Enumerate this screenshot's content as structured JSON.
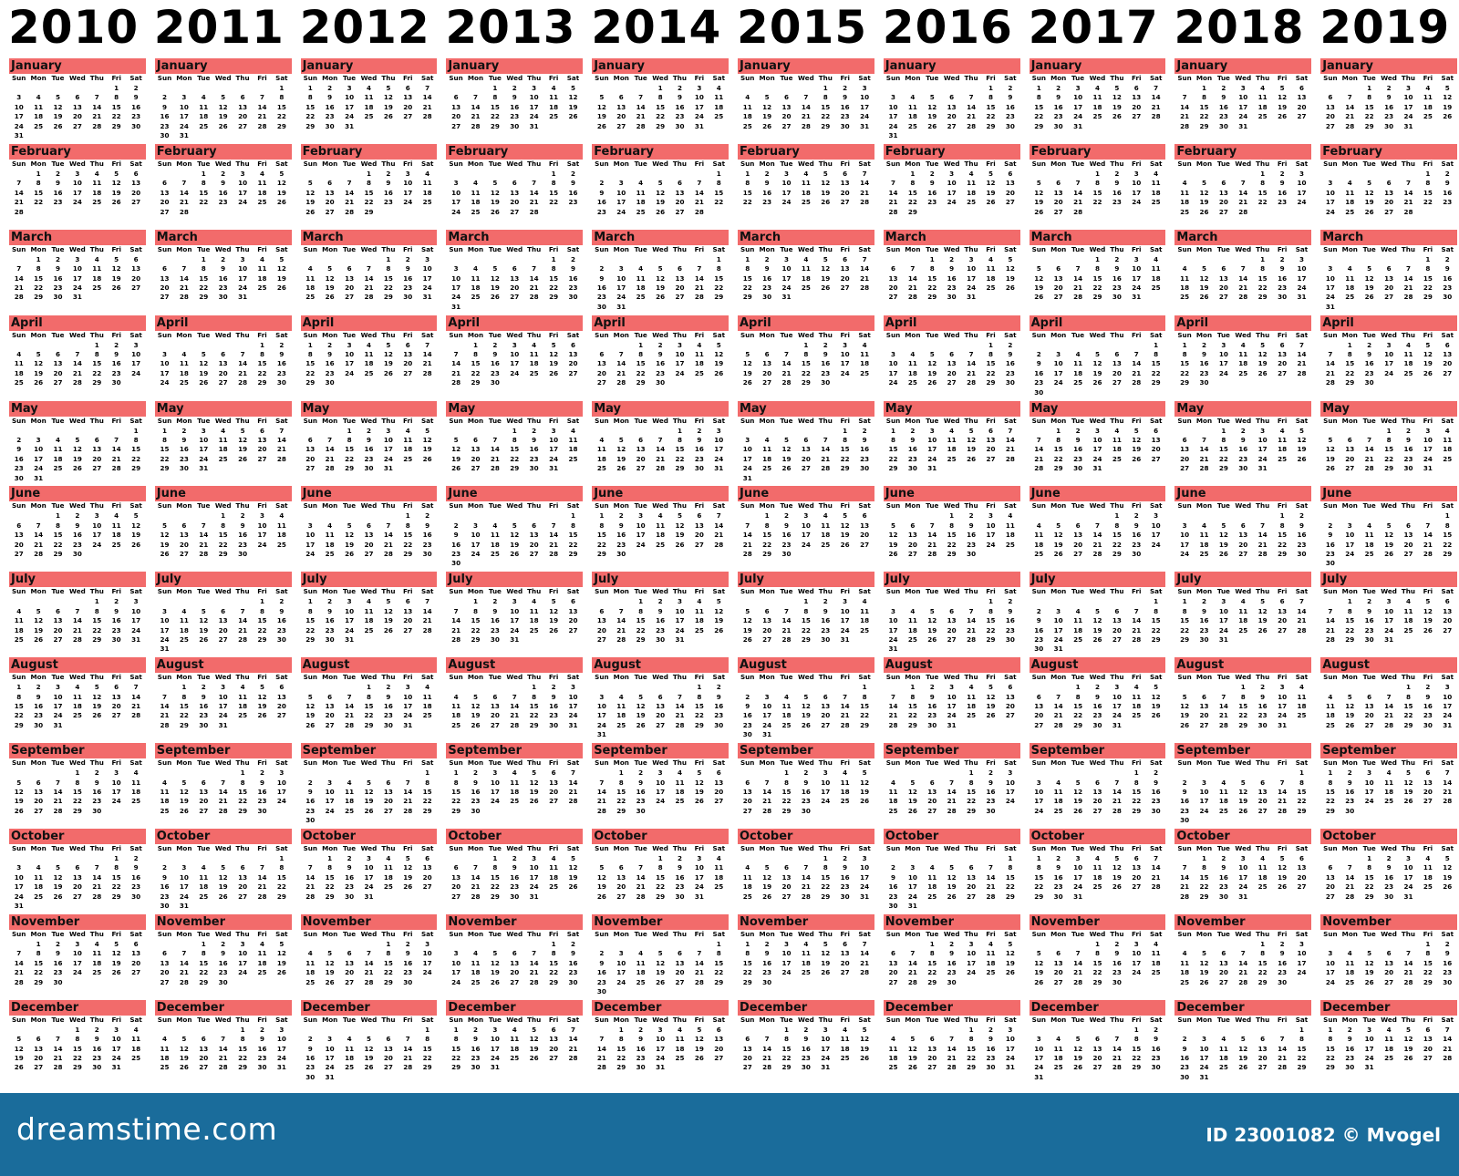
{
  "years": [
    "2010",
    "2011",
    "2012",
    "2013",
    "2014",
    "2015",
    "2016",
    "2017",
    "2018",
    "2019"
  ],
  "months": [
    "January",
    "February",
    "March",
    "April",
    "May",
    "June",
    "July",
    "August",
    "September",
    "October",
    "November",
    "December"
  ],
  "weekdays": [
    "Sun",
    "Mon",
    "Tue",
    "Wed",
    "Thu",
    "Fri",
    "Sat"
  ],
  "colors": {
    "month_header": "#f26b6b",
    "footer": "#1a6c9b"
  },
  "footer": {
    "logo": "dreamstime.com",
    "credit": "ID 23001082 © Mvogel"
  }
}
